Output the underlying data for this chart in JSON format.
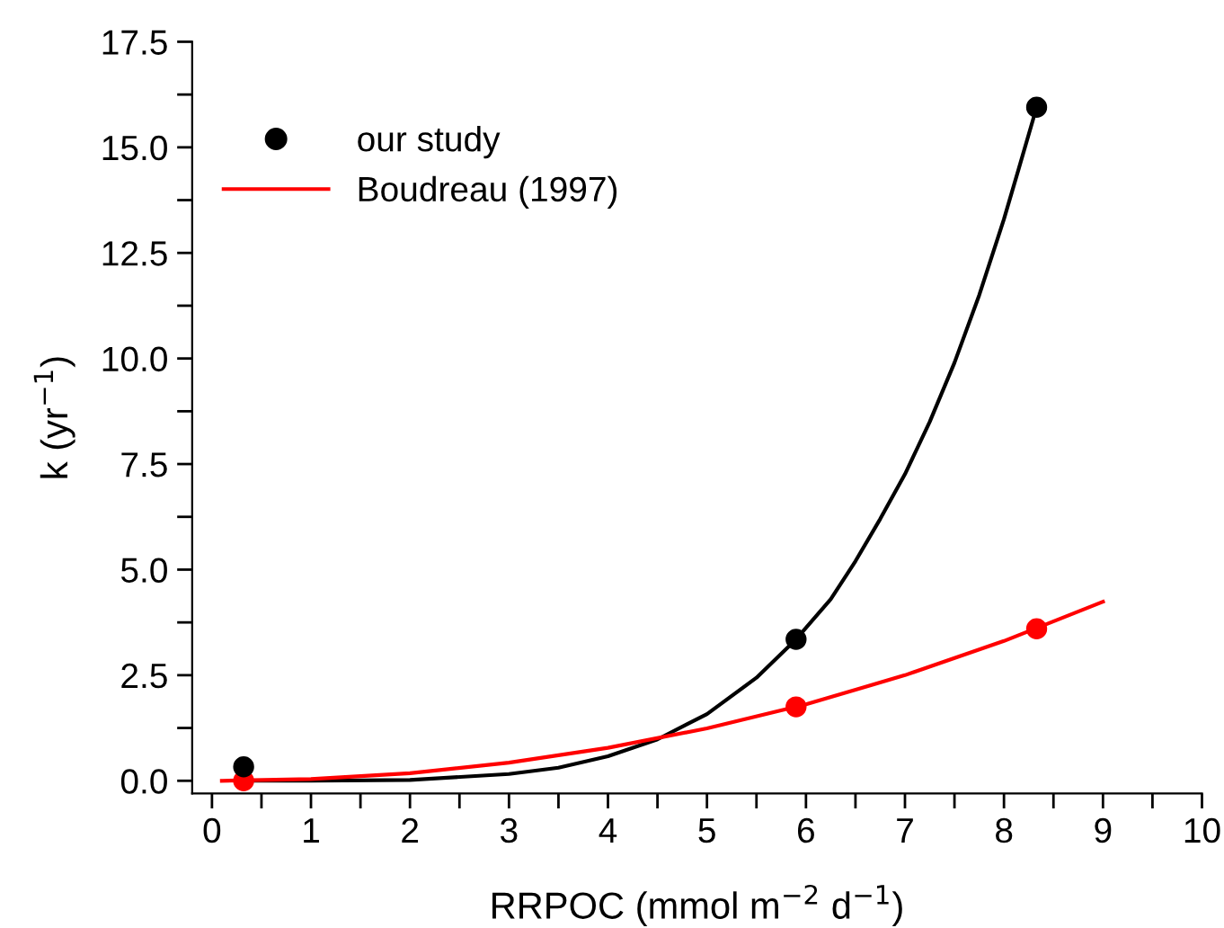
{
  "chart_data": {
    "type": "scatter",
    "xlabel": "RRPOC (mmol m$^{−2}$ d$^{−1}$)",
    "ylabel": "k (yr$^{−1}$)",
    "xlim": [
      -0.2,
      10
    ],
    "ylim": [
      -0.3,
      17.5
    ],
    "xticks": [
      0,
      {
        "value": 0.5,
        "label": null
      },
      1,
      {
        "value": 1.5,
        "label": null
      },
      2,
      {
        "value": 2.5,
        "label": null
      },
      3,
      {
        "value": 3.5,
        "label": null
      },
      4,
      {
        "value": 4.5,
        "label": null
      },
      5,
      {
        "value": 5.5,
        "label": null
      },
      6,
      {
        "value": 6.5,
        "label": null
      },
      7,
      {
        "value": 7.5,
        "label": null
      },
      8,
      {
        "value": 8.5,
        "label": null
      },
      9,
      {
        "value": 9.5,
        "label": null
      },
      10
    ],
    "yticks": [
      {
        "value": 0,
        "label": "0.0"
      },
      {
        "value": 1.25,
        "label": null
      },
      {
        "value": 2.5,
        "label": "2.5"
      },
      {
        "value": 3.75,
        "label": null
      },
      {
        "value": 5,
        "label": "5.0"
      },
      {
        "value": 6.25,
        "label": null
      },
      {
        "value": 7.5,
        "label": "7.5"
      },
      {
        "value": 8.75,
        "label": null
      },
      {
        "value": 10,
        "label": "10.0"
      },
      {
        "value": 11.25,
        "label": null
      },
      {
        "value": 12.5,
        "label": "12.5"
      },
      {
        "value": 13.75,
        "label": null
      },
      {
        "value": 15,
        "label": "15.0"
      },
      {
        "value": 16.25,
        "label": null
      },
      {
        "value": 17.5,
        "label": "17.5"
      }
    ],
    "grid": false,
    "legend": "top left",
    "series": [
      {
        "name": "our study",
        "color": "#000000",
        "marker": "circle",
        "x": [
          0.32,
          5.9,
          8.33
        ],
        "values": [
          0.33,
          3.35,
          15.95
        ]
      },
      {
        "type": "line",
        "color": "#000000",
        "x": [
          0.3,
          1,
          2,
          3,
          3.5,
          4,
          4.5,
          5,
          5.5,
          5.9,
          6.25,
          6.5,
          6.75,
          7,
          7.25,
          7.5,
          7.75,
          8,
          8.15,
          8.33
        ],
        "values": [
          0,
          0,
          0.02,
          0.16,
          0.31,
          0.58,
          0.98,
          1.58,
          2.44,
          3.35,
          4.3,
          5.2,
          6.2,
          7.26,
          8.5,
          9.9,
          11.5,
          13.3,
          14.5,
          15.95
        ]
      },
      {
        "type": "line",
        "name": "Boudreau (1997)",
        "color": "#ff0000",
        "x": [
          0.1,
          1,
          2,
          3,
          4,
          5,
          6,
          7,
          8,
          9
        ],
        "values": [
          0,
          0.04,
          0.18,
          0.43,
          0.78,
          1.24,
          1.81,
          2.5,
          3.31,
          4.24
        ]
      },
      {
        "color": "#ff0000",
        "marker": "circle",
        "x": [
          0.32,
          5.9,
          8.33
        ],
        "values": [
          0.0,
          1.75,
          3.6
        ]
      }
    ]
  }
}
